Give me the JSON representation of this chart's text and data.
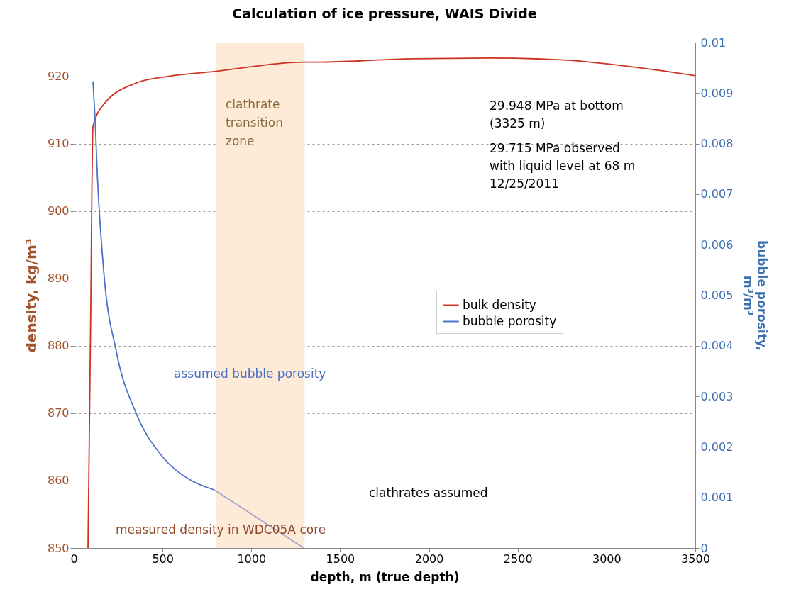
{
  "chart_data": {
    "type": "line",
    "title": "Calculation of ice pressure, WAIS Divide",
    "xlabel": "depth, m (true depth)",
    "ylabel": "density, kg/m³",
    "y2label": "bubble porosity,\nm³/m³",
    "xlim": [
      0,
      3500
    ],
    "xticks": [
      0,
      500,
      1000,
      1500,
      2000,
      2500,
      3000,
      3500
    ],
    "ylim": [
      850,
      925
    ],
    "yticks": [
      850,
      860,
      870,
      880,
      890,
      900,
      910,
      920
    ],
    "y2lim": [
      0,
      0.01
    ],
    "y2ticks": [
      0,
      0.001,
      0.002,
      0.003,
      0.004,
      0.005,
      0.006,
      0.007,
      0.008,
      0.009,
      0.01
    ],
    "grid": "y",
    "legend": "right",
    "bands": [
      {
        "axis": "x",
        "from": 800,
        "to": 1300,
        "label": "clathrate\ntransition\nzone",
        "color": "#fdebd8"
      }
    ],
    "annotations": [
      "29.948 MPa at bottom\n(3325 m)",
      "29.715 MPa observed\nwith liquid level at 68 m\n12/25/2011",
      "assumed bubble porosity",
      "clathrates assumed",
      "measured density in WDC05A core"
    ],
    "series": [
      {
        "name": "bulk density",
        "color": "#cc3322",
        "x": [
          80,
          94,
          108,
          168,
          352,
          535,
          791,
          1295,
          1383,
          1907,
          2346,
          2762,
          3173,
          3497
        ],
        "values": [
          850,
          881.5,
          912.5,
          915.8,
          919.0,
          920.0,
          920.7,
          922.1,
          922.1,
          922.6,
          922.7,
          922.4,
          921.3,
          920.1
        ]
      },
      {
        "name": "bubble porosity",
        "color": "#4a72c8",
        "axis": "y2",
        "x": [
          108,
          121,
          132,
          168,
          240,
          352,
          496,
          644,
          791
        ],
        "values": [
          0.00923,
          0.00839,
          0.00743,
          0.0055,
          0.00388,
          0.00266,
          0.00182,
          0.00137,
          0.00115
        ]
      },
      {
        "color": "#a4a4cc",
        "axis": "y2",
        "x": [
          791,
          1295
        ],
        "values": [
          0.00115,
          0
        ]
      }
    ]
  }
}
